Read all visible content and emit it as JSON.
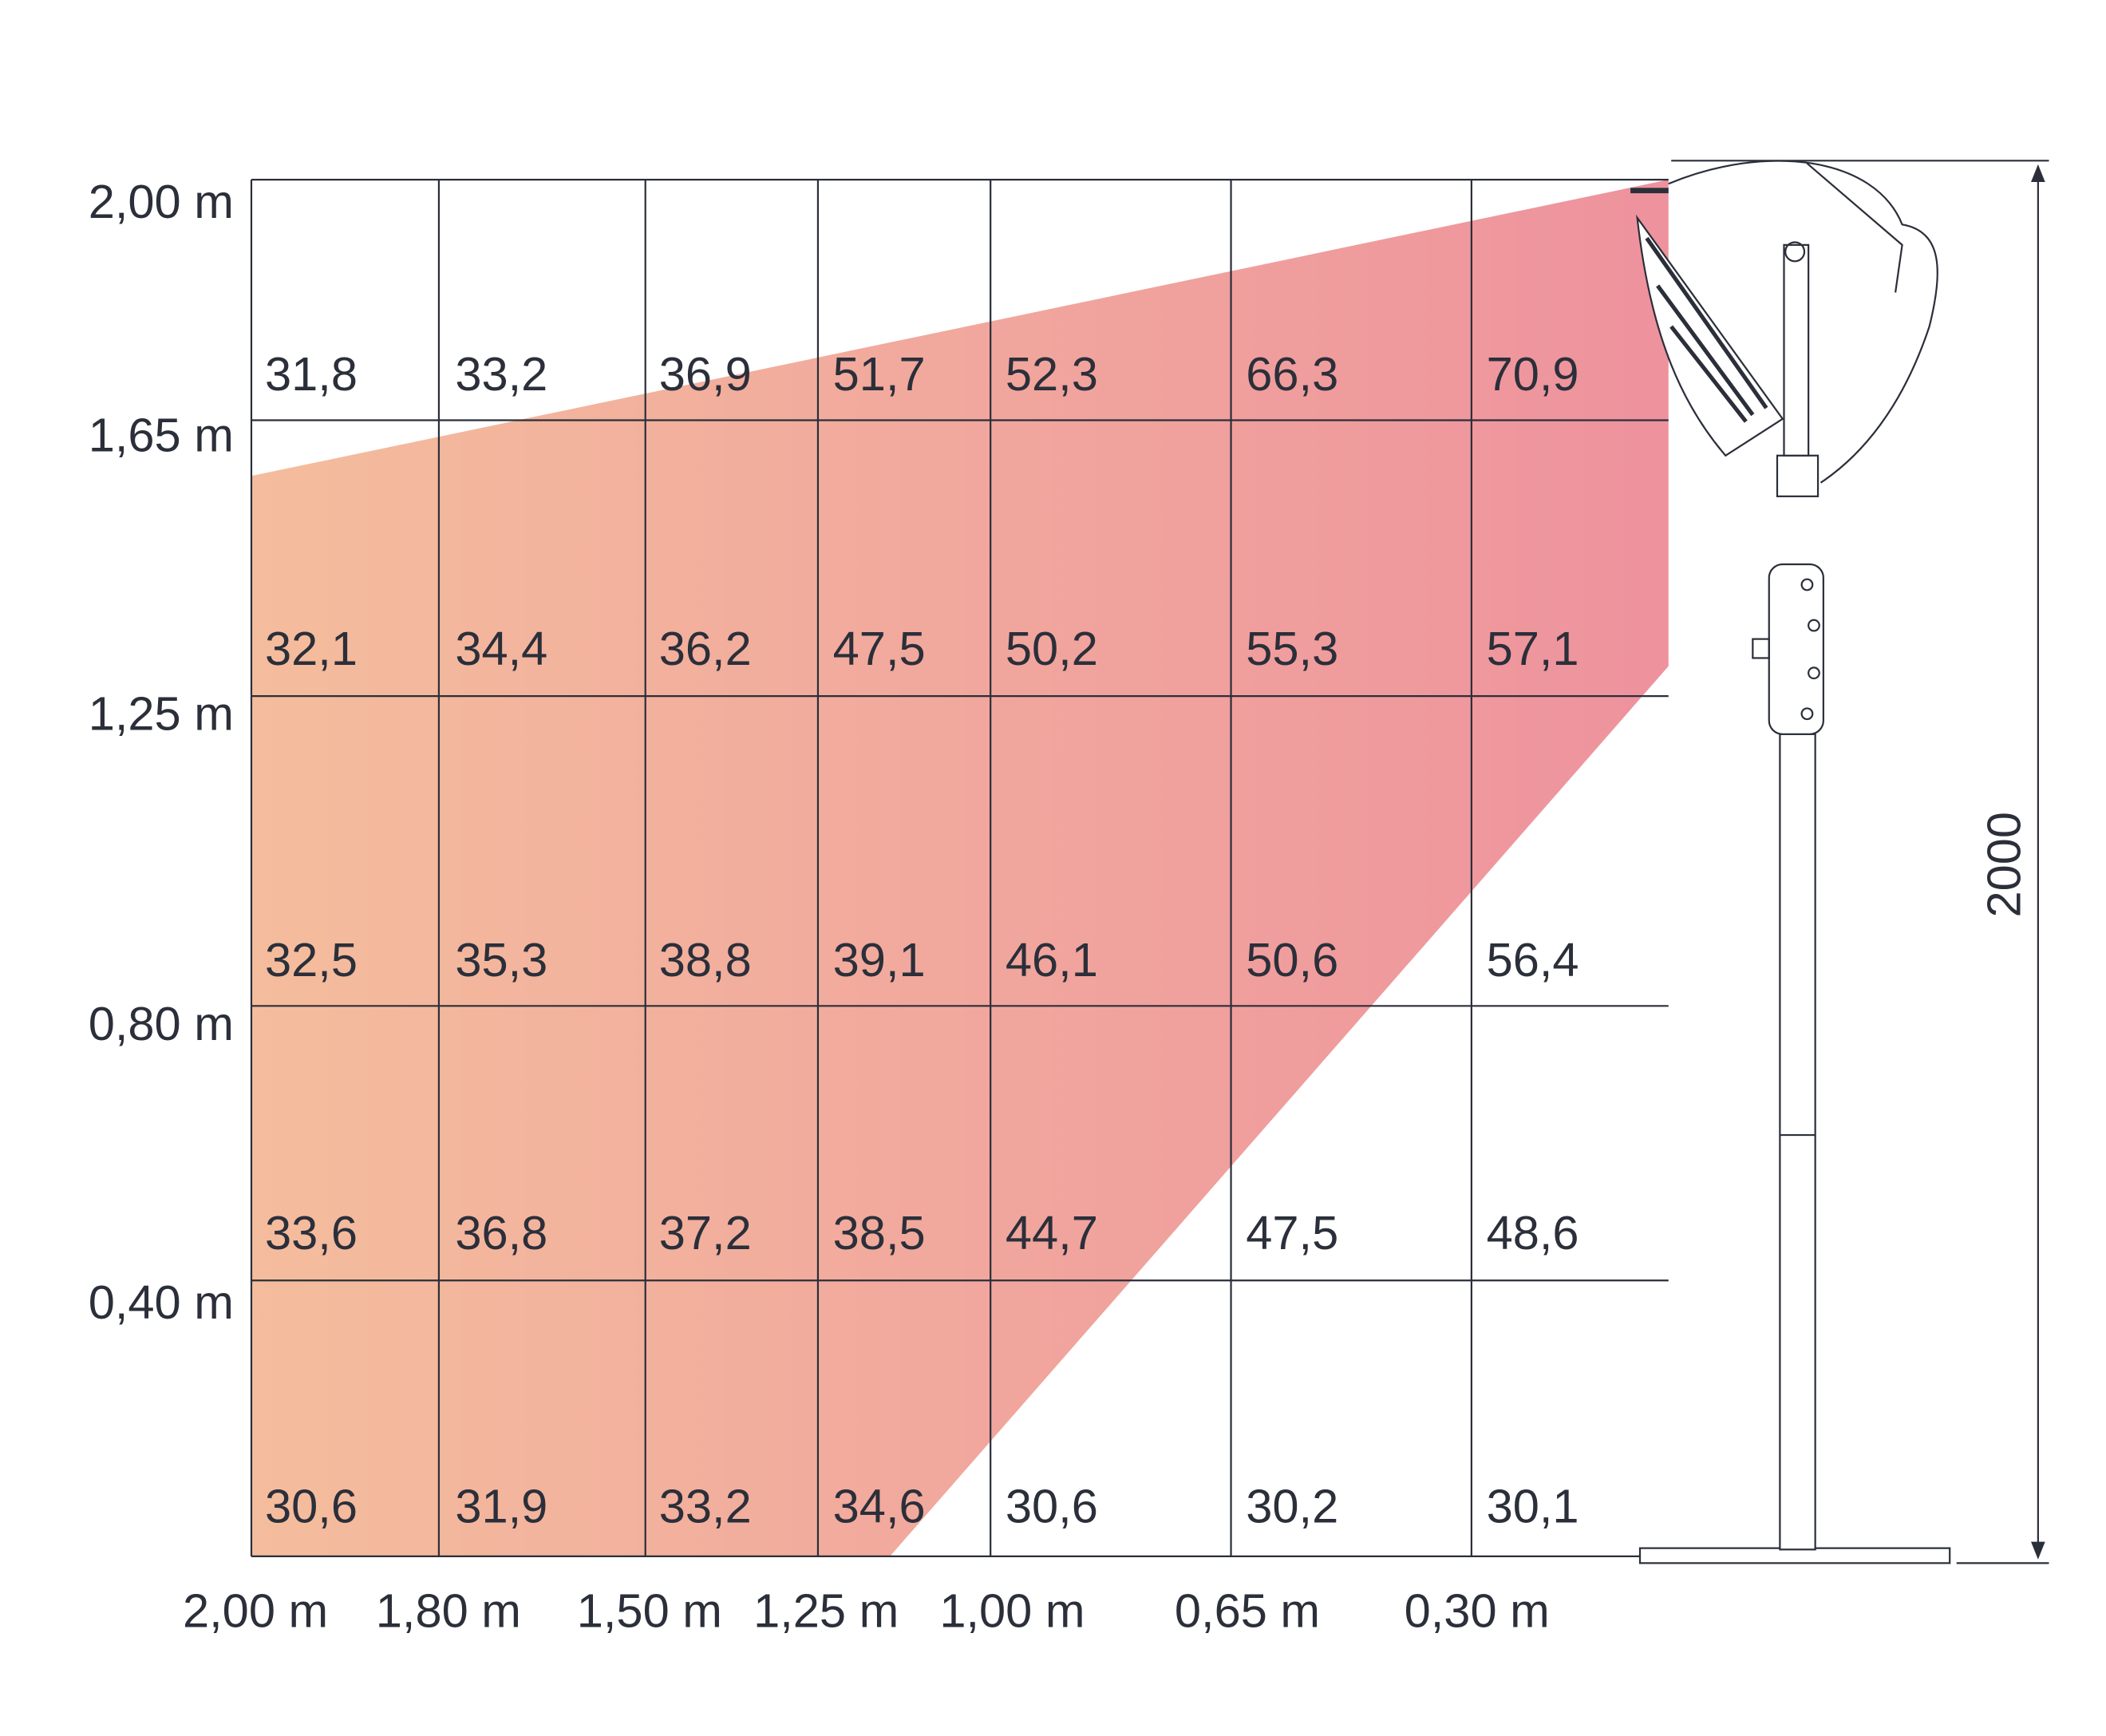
{
  "y_labels": [
    "2,00 m",
    "1,65 m",
    "1,25 m",
    "0,80 m",
    "0,40 m"
  ],
  "x_labels": [
    "2,00 m",
    "1,80 m",
    "1,50 m",
    "1,25 m",
    "1,00 m",
    "0,65 m",
    "0,30 m"
  ],
  "rows": [
    [
      "31,8",
      "33,2",
      "36,9",
      "51,7",
      "52,3",
      "66,3",
      "70,9"
    ],
    [
      "32,1",
      "34,4",
      "36,2",
      "47,5",
      "50,2",
      "55,3",
      "57,1"
    ],
    [
      "32,5",
      "35,3",
      "38,8",
      "39,1",
      "46,1",
      "50,6",
      "56,4"
    ],
    [
      "33,6",
      "36,8",
      "37,2",
      "38,5",
      "44,7",
      "47,5",
      "48,6"
    ],
    [
      "30,6",
      "31,9",
      "33,2",
      "34,6",
      "30,6",
      "30,2",
      "30,1"
    ]
  ],
  "dimension": "2000"
}
